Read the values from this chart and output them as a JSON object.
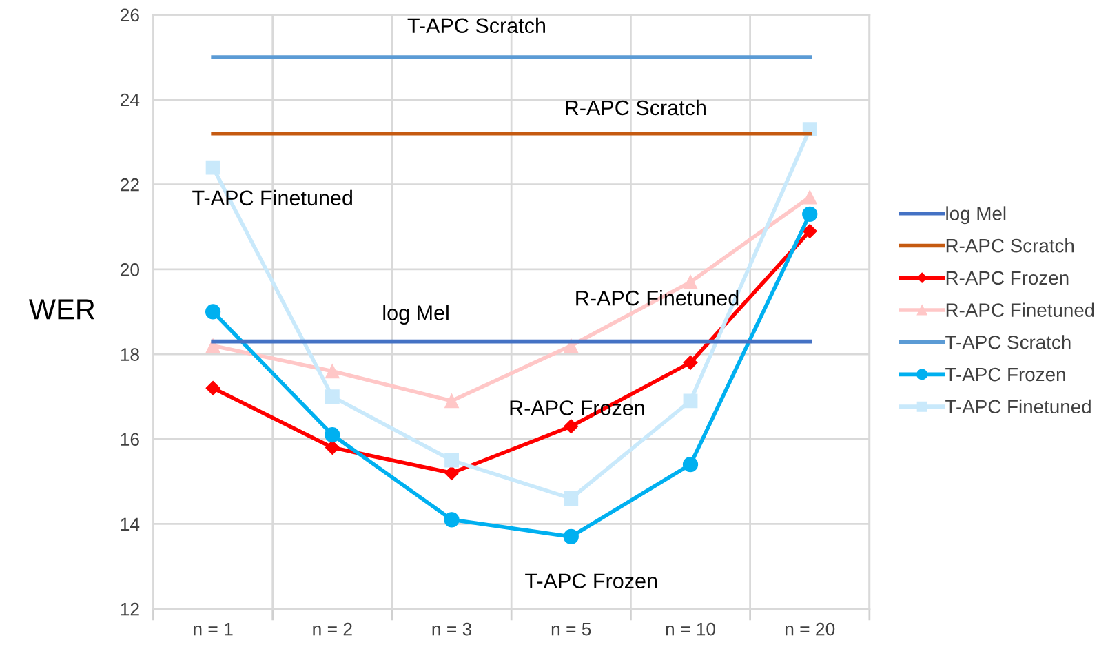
{
  "chart_data": {
    "type": "line",
    "ylabel": "WER",
    "categories": [
      "n = 1",
      "n = 2",
      "n = 3",
      "n = 5",
      "n = 10",
      "n = 20"
    ],
    "ylim": [
      12,
      26
    ],
    "yticks": [
      12,
      14,
      16,
      18,
      20,
      22,
      24,
      26
    ],
    "grid": true,
    "legend": "right",
    "series": [
      {
        "name": "log Mel",
        "color": "#4472c4",
        "marker": "none",
        "values": [
          18.3,
          18.3,
          18.3,
          18.3,
          18.3,
          18.3
        ]
      },
      {
        "name": "R-APC Scratch",
        "color": "#c55a11",
        "marker": "none",
        "values": [
          23.2,
          23.2,
          23.2,
          23.2,
          23.2,
          23.2
        ]
      },
      {
        "name": "R-APC Frozen",
        "color": "#ff0000",
        "marker": "diamond",
        "values": [
          17.2,
          15.8,
          15.2,
          16.3,
          17.8,
          20.9
        ]
      },
      {
        "name": "R-APC Finetuned",
        "color": "#ffc7c7",
        "marker": "triangle",
        "values": [
          18.2,
          17.6,
          16.9,
          18.2,
          19.7,
          21.7
        ]
      },
      {
        "name": "T-APC Scratch",
        "color": "#5b9bd5",
        "marker": "none",
        "values": [
          25.0,
          25.0,
          25.0,
          25.0,
          25.0,
          25.0
        ]
      },
      {
        "name": "T-APC Frozen",
        "color": "#00b0f0",
        "marker": "circle",
        "values": [
          19.0,
          16.1,
          14.1,
          13.7,
          15.4,
          21.3
        ]
      },
      {
        "name": "T-APC Finetuned",
        "color": "#c9e9fb",
        "marker": "square",
        "values": [
          22.4,
          17.0,
          15.5,
          14.6,
          16.9,
          23.3
        ]
      }
    ]
  }
}
